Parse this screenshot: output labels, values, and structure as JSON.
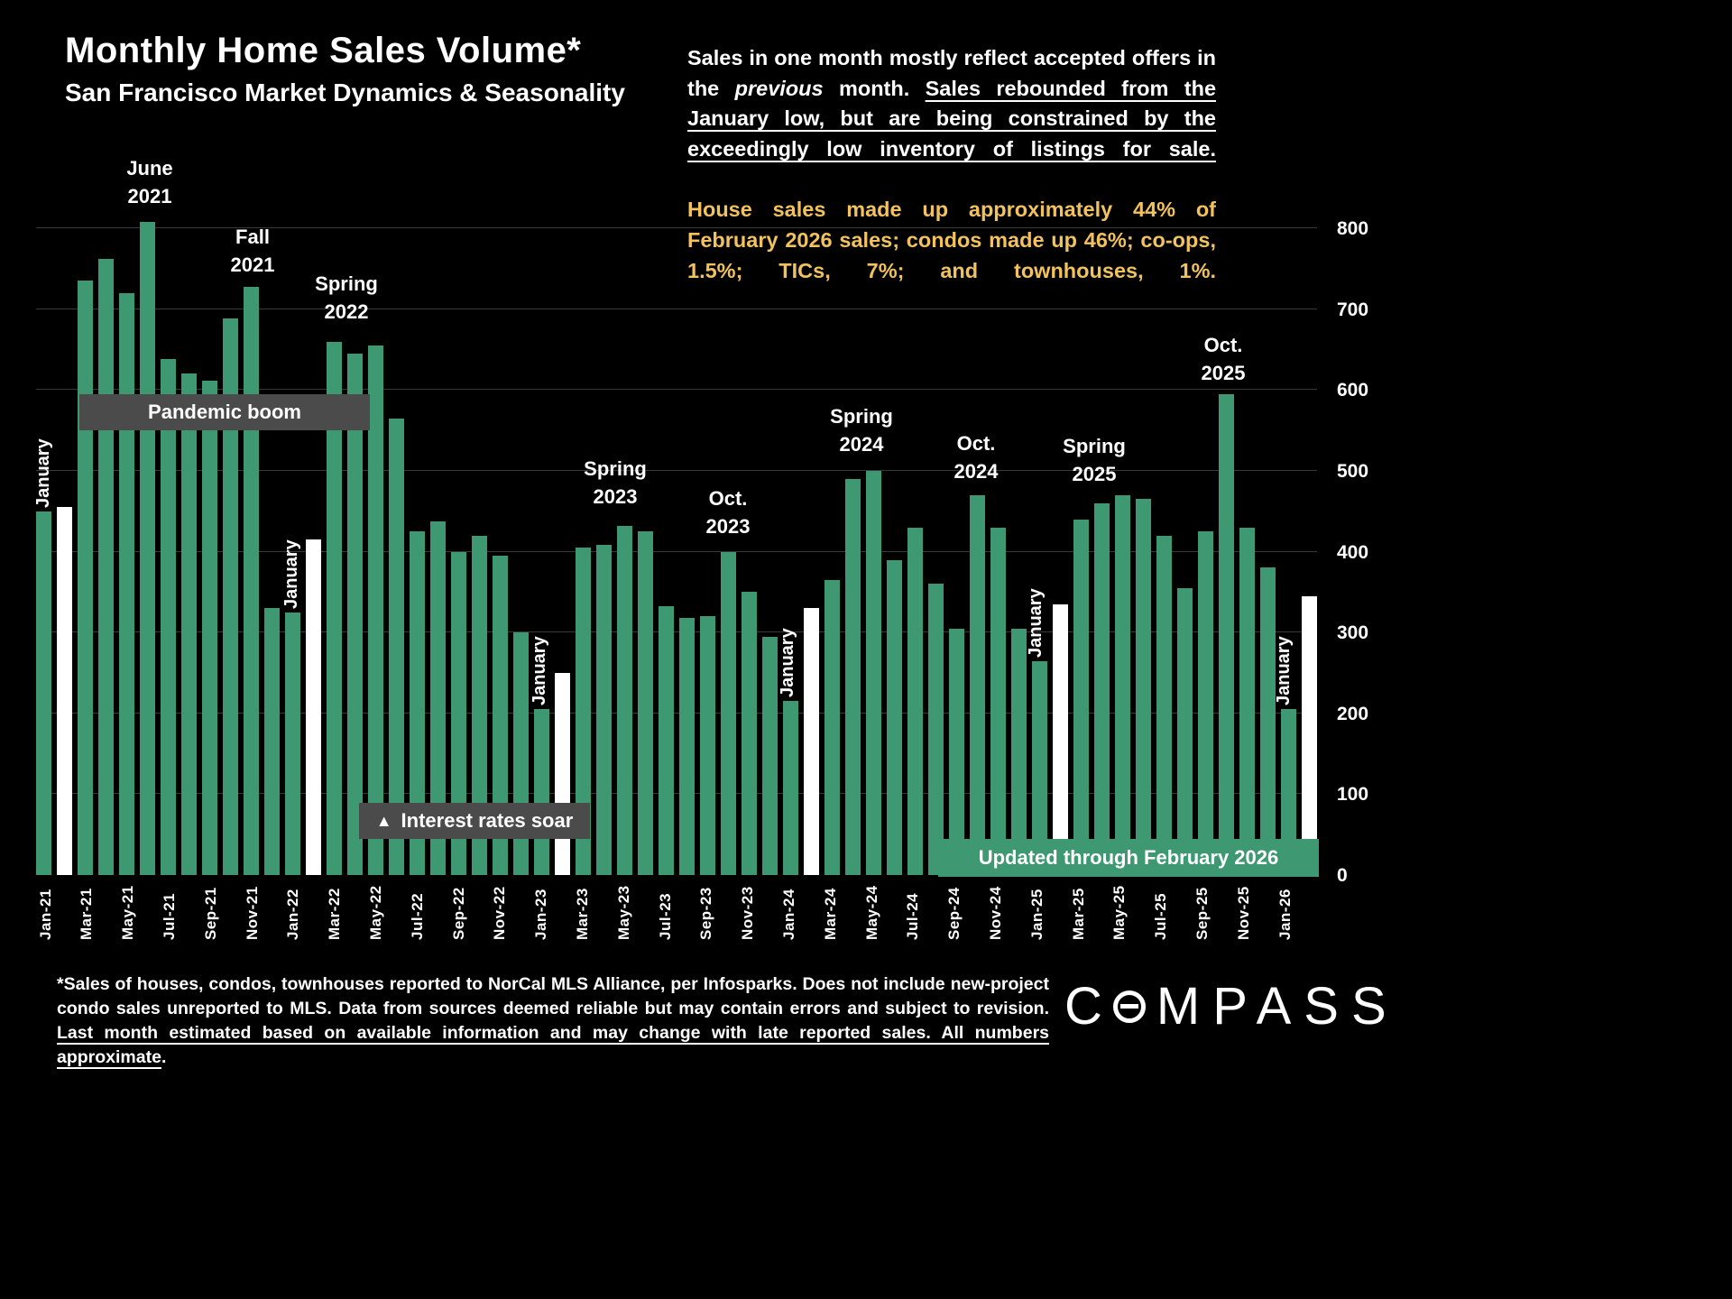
{
  "header": {
    "title": "Monthly Home Sales Volume*",
    "subtitle": "San Francisco Market Dynamics & Seasonality"
  },
  "commentary": {
    "part1": "Sales in one month mostly reflect accepted offers in the ",
    "italic_word": "previous",
    "part2": " month. ",
    "underlined": "Sales rebounded from the January low, but are being constrained by the exceedingly low inventory of listings for sale.",
    "highlight": "House sales made up approximately 44% of February 2026 sales; condos made up 46%; co-ops, 1.5%; TICs, 7%; and townhouses, 1%."
  },
  "chart_data": {
    "type": "bar",
    "title": "Monthly Home Sales Volume*",
    "subtitle": "San Francisco Market Dynamics & Seasonality",
    "xlabel": "",
    "ylabel": "",
    "ylim": [
      0,
      800
    ],
    "yticks": [
      0,
      100,
      200,
      300,
      400,
      500,
      600,
      700,
      800
    ],
    "xtick_every": 2,
    "bar_color": "#3e9973",
    "highlight_color": "#ffffff",
    "highlight_months": [
      "Feb-21",
      "Feb-22",
      "Feb-23",
      "Feb-24",
      "Feb-25",
      "Feb-26"
    ],
    "x": [
      "Jan-21",
      "Feb-21",
      "Mar-21",
      "Apr-21",
      "May-21",
      "Jun-21",
      "Jul-21",
      "Aug-21",
      "Sep-21",
      "Oct-21",
      "Nov-21",
      "Dec-21",
      "Jan-22",
      "Feb-22",
      "Mar-22",
      "Apr-22",
      "May-22",
      "Jun-22",
      "Jul-22",
      "Aug-22",
      "Sep-22",
      "Oct-22",
      "Nov-22",
      "Dec-22",
      "Jan-23",
      "Feb-23",
      "Mar-23",
      "Apr-23",
      "May-23",
      "Jun-23",
      "Jul-23",
      "Aug-23",
      "Sep-23",
      "Oct-23",
      "Nov-23",
      "Dec-23",
      "Jan-24",
      "Feb-24",
      "Mar-24",
      "Apr-24",
      "May-24",
      "Jun-24",
      "Jul-24",
      "Aug-24",
      "Sep-24",
      "Oct-24",
      "Nov-24",
      "Dec-24",
      "Jan-25",
      "Feb-25",
      "Mar-25",
      "Apr-25",
      "May-25",
      "Jun-25",
      "Jul-25",
      "Aug-25",
      "Sep-25",
      "Oct-25",
      "Nov-25",
      "Dec-25",
      "Jan-26",
      "Feb-26"
    ],
    "values": [
      450,
      455,
      735,
      762,
      720,
      808,
      638,
      620,
      612,
      688,
      727,
      330,
      325,
      415,
      660,
      645,
      655,
      565,
      425,
      437,
      400,
      420,
      395,
      300,
      205,
      250,
      405,
      408,
      432,
      425,
      332,
      318,
      320,
      400,
      350,
      295,
      215,
      330,
      365,
      490,
      500,
      390,
      430,
      360,
      305,
      470,
      430,
      305,
      265,
      335,
      440,
      460,
      470,
      465,
      420,
      355,
      425,
      595,
      430,
      380,
      205,
      345
    ],
    "annotations": {
      "january": "January",
      "june_2021": "June\n2021",
      "fall_2021": "Fall\n2021",
      "spring_2022": "Spring\n2022",
      "spring_2023": "Spring\n2023",
      "oct_2023": "Oct.\n2023",
      "spring_2024": "Spring\n2024",
      "oct_2024": "Oct.\n2024",
      "spring_2025": "Spring\n2025",
      "oct_2025": "Oct.\n2025",
      "pandemic_boom": "Pandemic boom",
      "rates_icon": "▲",
      "rates_label": "Interest rates soar",
      "updated": "Updated through February 2026"
    }
  },
  "footer": {
    "footnote_part1": "*Sales of houses, condos, townhouses reported to NorCal MLS Alliance, per Infosparks. Does not include new-project condo sales unreported to MLS. Data from sources deemed reliable but may contain errors and subject to revision. ",
    "footnote_underlined": "Last month estimated based on available information and may change with late reported sales. All numbers approximate",
    "footnote_part2": "."
  },
  "logo": {
    "letter_c": "C",
    "letters_rest": "MPASS",
    "label": "COMPASS"
  }
}
